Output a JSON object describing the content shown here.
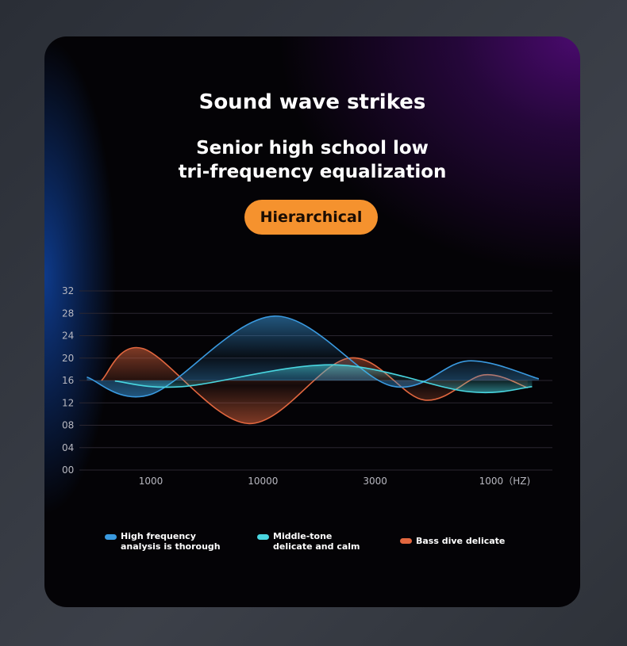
{
  "title": "Sound wave strikes",
  "subtitle_line1": "Senior high school low",
  "subtitle_line2": "tri-frequency equalization",
  "badge": "Hierarchical",
  "colors": {
    "accent": "#f5922e",
    "high": "#3a9ae0",
    "mid": "#49d6e0",
    "bass": "#e2673f"
  },
  "chart_data": {
    "type": "line",
    "yticks": [
      "32",
      "28",
      "24",
      "20",
      "16",
      "12",
      "08",
      "04",
      "00"
    ],
    "ylim": [
      0,
      32
    ],
    "xticks": [
      "1000",
      "10000",
      "3000",
      "1000（HZ)"
    ],
    "grid": true,
    "legend_placement": "bottom",
    "series": [
      {
        "name": "High frequency analysis is thorough",
        "color": "#3a9ae0",
        "points": [
          [
            0.43,
            16.6
          ],
          [
            1.0,
            13.5
          ],
          [
            2.1,
            27.5
          ],
          [
            3.15,
            15
          ],
          [
            3.83,
            19.5
          ],
          [
            4.46,
            16.3
          ]
        ]
      },
      {
        "name": "Middle-tone delicate and calm",
        "color": "#49d6e0",
        "points": [
          [
            0.68,
            15.9
          ],
          [
            1.28,
            14.9
          ],
          [
            2.63,
            18.8
          ],
          [
            3.83,
            14
          ],
          [
            4.4,
            14.9
          ]
        ]
      },
      {
        "name": "Bass dive delicate",
        "color": "#e2673f",
        "points": [
          [
            0.56,
            16
          ],
          [
            0.93,
            21.7
          ],
          [
            1.87,
            8.3
          ],
          [
            2.77,
            20
          ],
          [
            3.44,
            12.5
          ],
          [
            3.97,
            17
          ],
          [
            4.36,
            14.7
          ]
        ]
      }
    ],
    "legend": [
      {
        "line1": "High frequency",
        "line2": "analysis is thorough"
      },
      {
        "line1": "Middle-tone",
        "line2": "delicate and calm"
      },
      {
        "line1": "Bass dive delicate",
        "line2": ""
      }
    ]
  }
}
